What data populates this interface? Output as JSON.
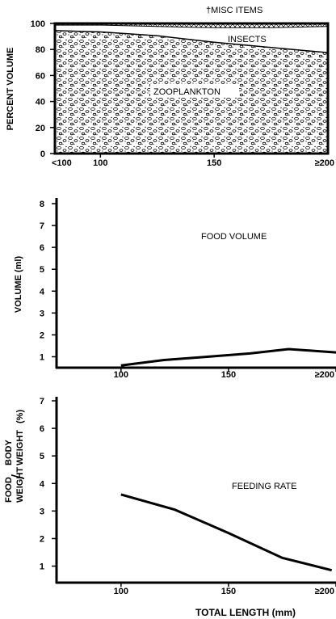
{
  "chart_data": [
    {
      "type": "area",
      "stacked": true,
      "ylabel": "PERCENT VOLUME",
      "x_ticks": [
        "<100",
        "100",
        "150",
        "≥200"
      ],
      "y_ticks": [
        "0",
        "20",
        "40",
        "60",
        "80",
        "100"
      ],
      "ylim": [
        0,
        100
      ],
      "x": [
        80,
        100,
        125,
        150,
        175,
        200
      ],
      "series": [
        {
          "name": "ZOOPLANKTON",
          "values": [
            95,
            94,
            91,
            86,
            82,
            78
          ],
          "pattern": "stipple"
        },
        {
          "name": "INSECTS",
          "values": [
            4,
            5,
            7,
            11,
            15,
            20
          ],
          "pattern": "white"
        },
        {
          "name": "MISC ITEMS",
          "values": [
            1,
            1,
            2,
            3,
            3,
            2
          ],
          "pattern": "crosshatch"
        }
      ],
      "annotations": [
        "†MISC ITEMS"
      ]
    },
    {
      "type": "line",
      "title": "FOOD VOLUME",
      "ylabel": "VOLUME (ml)",
      "x_ticks": [
        "100",
        "150",
        "≥200"
      ],
      "y_ticks": [
        "1",
        "2",
        "3",
        "4",
        "5",
        "6",
        "7",
        "8"
      ],
      "ylim": [
        0.5,
        8
      ],
      "xlim": [
        70,
        200
      ],
      "x": [
        100,
        120,
        140,
        160,
        178,
        200
      ],
      "values": [
        0.6,
        0.85,
        1.0,
        1.15,
        1.35,
        1.2
      ]
    },
    {
      "type": "line",
      "title": "FEEDING RATE",
      "ylabel_top": "FOOD",
      "ylabel_top2": "WEIGHT",
      "ylabel_bottom": "BODY",
      "ylabel_bottom2": "WEIGHT",
      "ylabel_slash": "/",
      "ylabel_unit": "(%)",
      "x_ticks": [
        "100",
        "150",
        "≥200"
      ],
      "y_ticks": [
        "1",
        "2",
        "3",
        "4",
        "5",
        "6",
        "7"
      ],
      "ylim": [
        0.4,
        7
      ],
      "xlim": [
        70,
        200
      ],
      "x": [
        100,
        125,
        150,
        175,
        198
      ],
      "values": [
        3.6,
        3.05,
        2.2,
        1.3,
        0.85
      ],
      "xlabel": "TOTAL LENGTH (mm)"
    }
  ]
}
